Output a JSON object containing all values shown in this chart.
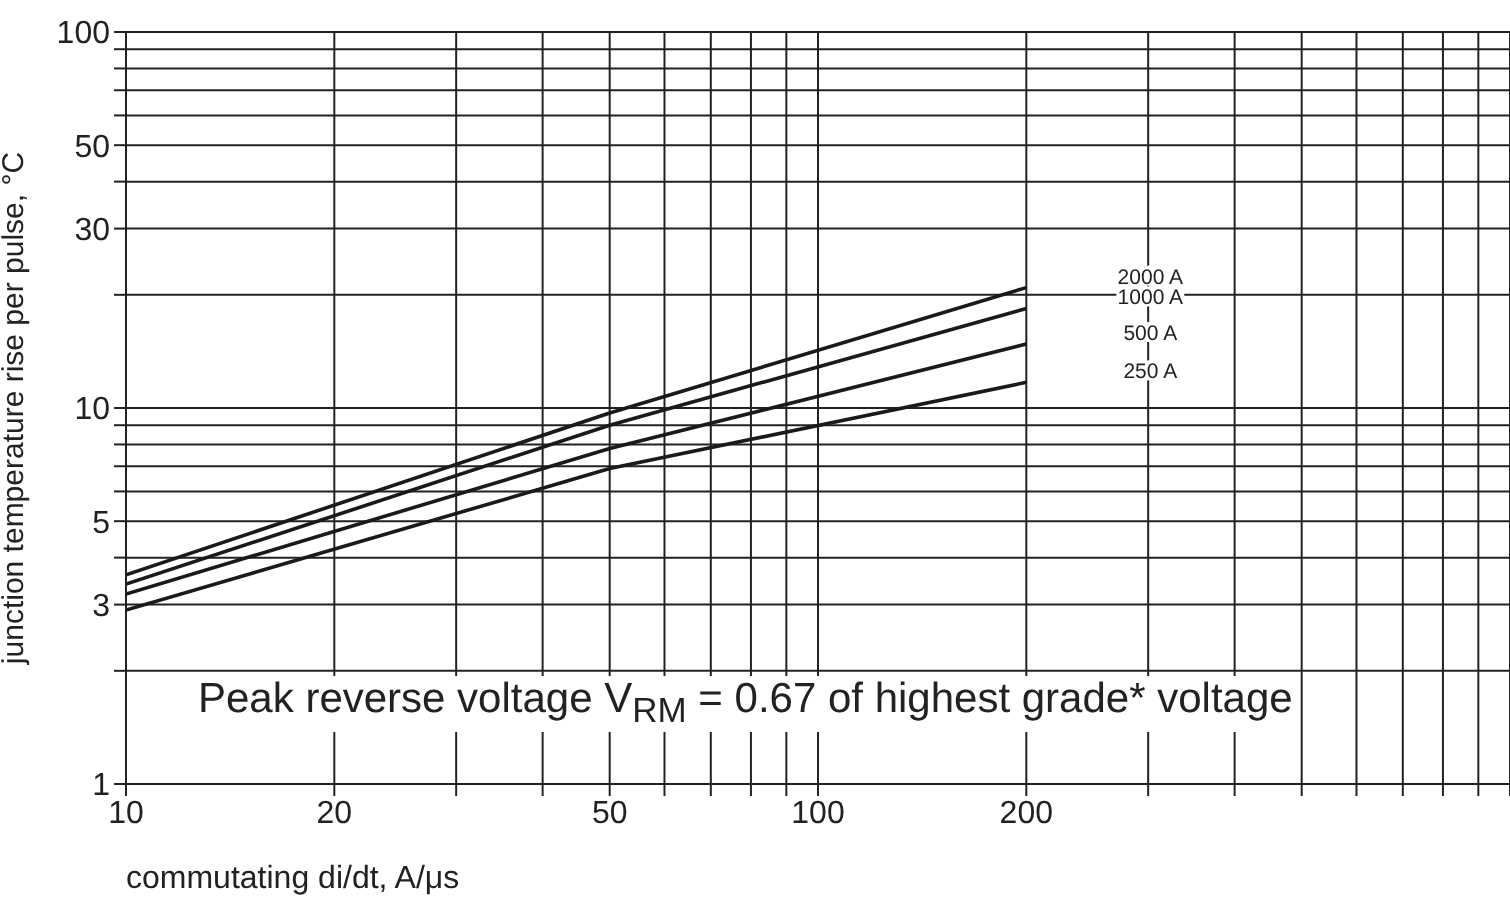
{
  "chart_data": {
    "type": "line",
    "xlabel": "commutating di/dt, A/μs",
    "ylabel": "junction temperature rise per pulse, °C",
    "log": "xy",
    "grid": true,
    "marker": "none",
    "line_style": "solid",
    "xlim": [
      10,
      1000
    ],
    "xticks": [
      10,
      20,
      {
        "value": 30,
        "label": null
      },
      {
        "value": 40,
        "label": null
      },
      50,
      {
        "value": 60,
        "label": null
      },
      {
        "value": 70,
        "label": null
      },
      {
        "value": 80,
        "label": null
      },
      {
        "value": 90,
        "label": null
      },
      100,
      200,
      {
        "value": 300,
        "label": null
      },
      {
        "value": 400,
        "label": null
      },
      {
        "value": 500,
        "label": null
      },
      {
        "value": 600,
        "label": null
      },
      {
        "value": 700,
        "label": null
      },
      {
        "value": 800,
        "label": null
      },
      {
        "value": 900,
        "label": null
      },
      {
        "value": 1000,
        "label": null
      }
    ],
    "ylim": [
      1,
      100
    ],
    "yticks": [
      1,
      {
        "value": 2,
        "label": null
      },
      3,
      {
        "value": 4,
        "label": null
      },
      5,
      {
        "value": 6,
        "label": null
      },
      {
        "value": 7,
        "label": null
      },
      {
        "value": 8,
        "label": null
      },
      {
        "value": 9,
        "label": null
      },
      10,
      {
        "value": 20,
        "label": null
      },
      30,
      {
        "value": 40,
        "label": null
      },
      50,
      {
        "value": 60,
        "label": null
      },
      {
        "value": 70,
        "label": null
      },
      {
        "value": 80,
        "label": null
      },
      {
        "value": 90,
        "label": null
      },
      100
    ],
    "series": [
      {
        "name": "2000 A",
        "color": "#1a1a1a",
        "x": [
          10,
          50,
          200
        ],
        "values": [
          3.6,
          9.7,
          20.9
        ]
      },
      {
        "name": "1000 A",
        "color": "#1a1a1a",
        "x": [
          10,
          50,
          200
        ],
        "values": [
          3.4,
          9.0,
          18.4
        ]
      },
      {
        "name": "500 A",
        "color": "#1a1a1a",
        "x": [
          10,
          50,
          200
        ],
        "values": [
          3.2,
          7.8,
          14.8
        ]
      },
      {
        "name": "250 A",
        "color": "#1a1a1a",
        "x": [
          10,
          50,
          200
        ],
        "values": [
          2.9,
          6.9,
          11.7
        ]
      }
    ],
    "annotations": [
      "Peak reverse voltage V$_{RM}$ = 0.67 of highest grade* voltage"
    ]
  }
}
